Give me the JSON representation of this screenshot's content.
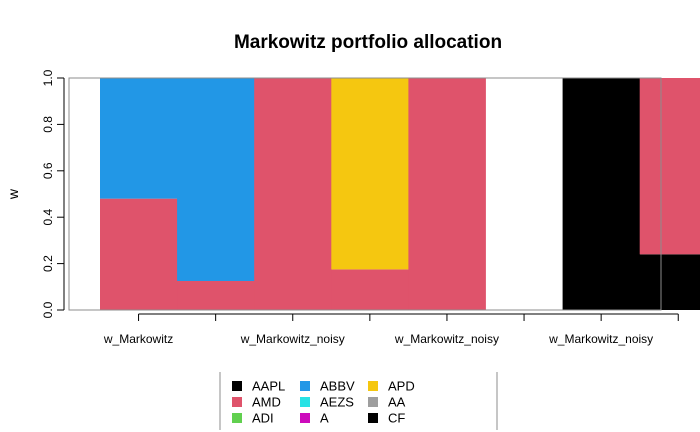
{
  "chart_data": {
    "type": "bar",
    "stacked": true,
    "title": "Markowitz portfolio allocation",
    "xlabel": "",
    "ylabel": "w",
    "ylim": [
      0,
      1
    ],
    "yticks": [
      "0.0",
      "0.2",
      "0.4",
      "0.6",
      "0.8",
      "1.0"
    ],
    "grid": false,
    "legend_position": "bottom",
    "group_labels": [
      "w_Markowitz",
      "w_Markowitz_noisy",
      "w_Markowitz_noisy",
      "w_Markowitz_noisy"
    ],
    "bars_per_group": 2,
    "series": [
      {
        "name": "AAPL",
        "color": "#000000",
        "values": [
          0,
          0,
          0,
          0,
          0,
          0,
          1.0,
          0.24
        ]
      },
      {
        "name": "AMD",
        "color": "#DF536B",
        "values": [
          0.48,
          0.125,
          1.0,
          0.175,
          1.0,
          0,
          0,
          0.76
        ]
      },
      {
        "name": "ADI",
        "color": "#61D04F",
        "values": [
          0,
          0,
          0,
          0,
          0,
          0,
          0,
          0
        ]
      },
      {
        "name": "ABBV",
        "color": "#2297E6",
        "values": [
          0.52,
          0.875,
          0,
          0,
          0,
          0,
          0,
          0
        ]
      },
      {
        "name": "AEZS",
        "color": "#28E2E5",
        "values": [
          0,
          0,
          0,
          0,
          0,
          0,
          0,
          0
        ]
      },
      {
        "name": "A",
        "color": "#CD0BBC",
        "values": [
          0,
          0,
          0,
          0,
          0,
          0,
          0,
          0
        ]
      },
      {
        "name": "APD",
        "color": "#F5C710",
        "values": [
          0,
          0,
          0,
          0.825,
          0,
          0,
          0,
          0
        ]
      },
      {
        "name": "AA",
        "color": "#9E9E9E",
        "values": [
          0,
          0,
          0,
          0,
          0,
          0,
          0,
          0
        ]
      },
      {
        "name": "CF",
        "color": "#000000",
        "values": [
          0,
          0,
          0,
          0,
          0,
          0,
          0,
          0
        ]
      }
    ]
  }
}
